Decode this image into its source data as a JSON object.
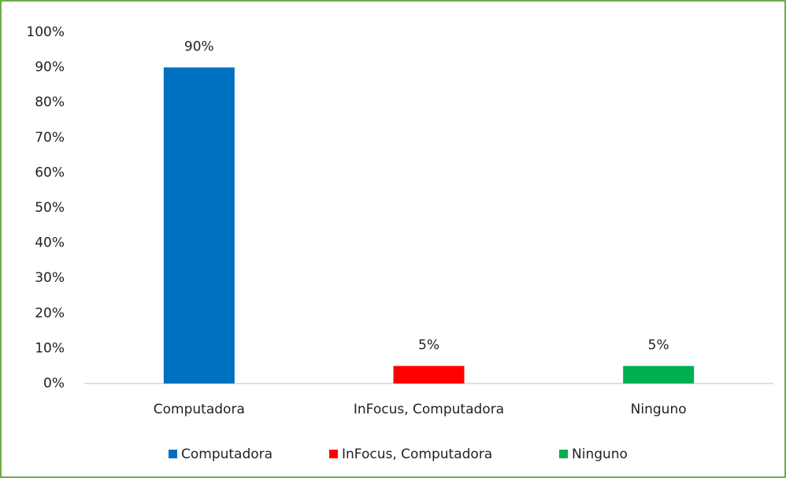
{
  "chart_data": {
    "type": "bar",
    "categories": [
      "Computadora",
      "InFocus, Computadora",
      "Ninguno"
    ],
    "values": [
      90,
      5,
      5
    ],
    "value_labels": [
      "90%",
      "5%",
      "5%"
    ],
    "colors": [
      "#0070c0",
      "#ff0000",
      "#00b050"
    ],
    "ylim": [
      0,
      100
    ],
    "yticks": [
      {
        "value": 0,
        "label": "0%"
      },
      {
        "value": 10,
        "label": "10%"
      },
      {
        "value": 20,
        "label": "20%"
      },
      {
        "value": 30,
        "label": "30%"
      },
      {
        "value": 40,
        "label": "40%"
      },
      {
        "value": 50,
        "label": "50%"
      },
      {
        "value": 60,
        "label": "60%"
      },
      {
        "value": 70,
        "label": "70%"
      },
      {
        "value": 80,
        "label": "80%"
      },
      {
        "value": 90,
        "label": "90%"
      },
      {
        "value": 100,
        "label": "100%"
      }
    ],
    "grid": false,
    "legend": "bottom"
  }
}
